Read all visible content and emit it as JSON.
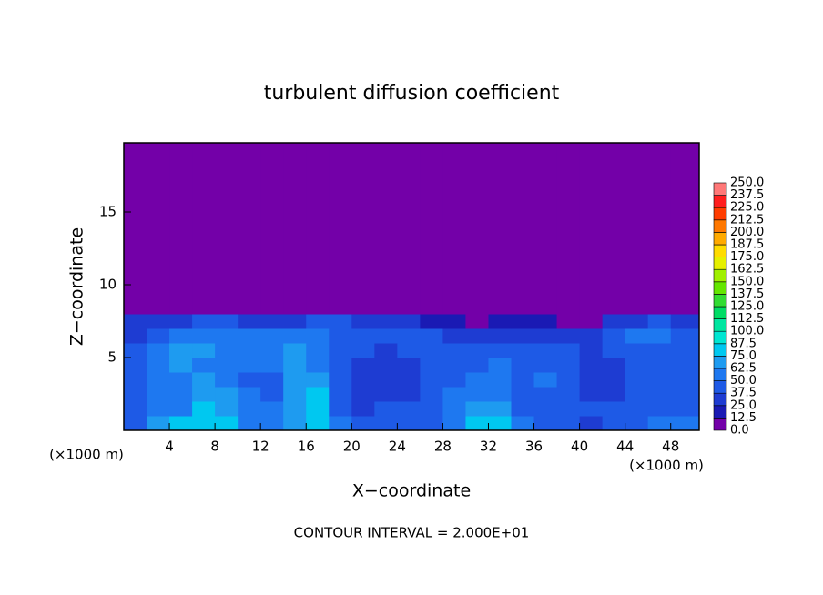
{
  "chart_data": {
    "type": "heatmap",
    "title": "turbulent diffusion coefficient",
    "x_label": "X−coordinate",
    "y_label": "Z−coordinate",
    "x_unit_left": "(×1000 m)",
    "x_unit_right": "(×1000 m)",
    "footnote": "CONTOUR INTERVAL = 2.000E+01",
    "xlim": [
      0,
      50.5
    ],
    "ylim": [
      0,
      19.75
    ],
    "xticks": [
      4,
      8,
      12,
      16,
      20,
      24,
      28,
      32,
      36,
      40,
      44,
      48
    ],
    "yticks": [
      5,
      10,
      15
    ],
    "x_edges": [
      0,
      2,
      4,
      6,
      8,
      10,
      12,
      14,
      16,
      18,
      20,
      22,
      24,
      26,
      28,
      30,
      32,
      34,
      36,
      38,
      40,
      42,
      44,
      46,
      48,
      50.5
    ],
    "y_edges": [
      0,
      1,
      2,
      3,
      4,
      5,
      6,
      7,
      8,
      19.75
    ],
    "z": [
      [
        45,
        70,
        85,
        80,
        75,
        60,
        55,
        70,
        80,
        50,
        40,
        45,
        40,
        45,
        60,
        75,
        80,
        60,
        40,
        45,
        35,
        40,
        45,
        50,
        55
      ],
      [
        40,
        60,
        60,
        75,
        70,
        55,
        50,
        70,
        80,
        40,
        35,
        40,
        40,
        45,
        60,
        70,
        65,
        45,
        40,
        45,
        40,
        40,
        45,
        45,
        45
      ],
      [
        40,
        55,
        50,
        70,
        65,
        50,
        45,
        65,
        75,
        40,
        35,
        35,
        35,
        40,
        55,
        60,
        55,
        40,
        45,
        40,
        35,
        35,
        40,
        40,
        40
      ],
      [
        40,
        55,
        60,
        65,
        60,
        45,
        45,
        65,
        70,
        45,
        35,
        35,
        35,
        40,
        45,
        50,
        55,
        40,
        50,
        45,
        35,
        35,
        40,
        40,
        40
      ],
      [
        40,
        60,
        70,
        60,
        55,
        50,
        50,
        70,
        60,
        40,
        35,
        35,
        35,
        40,
        40,
        45,
        50,
        40,
        45,
        40,
        35,
        35,
        40,
        45,
        40
      ],
      [
        40,
        55,
        70,
        65,
        55,
        55,
        55,
        65,
        55,
        45,
        40,
        35,
        40,
        45,
        40,
        40,
        45,
        40,
        40,
        40,
        35,
        40,
        45,
        45,
        40
      ],
      [
        35,
        45,
        55,
        60,
        55,
        50,
        50,
        55,
        50,
        45,
        45,
        40,
        40,
        40,
        30,
        30,
        35,
        30,
        30,
        30,
        30,
        40,
        50,
        50,
        40
      ],
      [
        25,
        30,
        35,
        40,
        40,
        30,
        25,
        35,
        40,
        40,
        35,
        30,
        25,
        20,
        15,
        10,
        15,
        20,
        15,
        10,
        10,
        25,
        35,
        40,
        30
      ],
      [
        0,
        0,
        0,
        0,
        0,
        0,
        0,
        0,
        0,
        0,
        0,
        0,
        0,
        0,
        0,
        0,
        0,
        0,
        0,
        0,
        0,
        0,
        0,
        0,
        0
      ]
    ],
    "levels": [
      {
        "value": 0,
        "label": "0.0"
      },
      {
        "value": 12.5,
        "label": "12.5"
      },
      {
        "value": 25,
        "label": "25.0"
      },
      {
        "value": 37.5,
        "label": "37.5"
      },
      {
        "value": 50,
        "label": "50.0"
      },
      {
        "value": 62.5,
        "label": "62.5"
      },
      {
        "value": 75,
        "label": "75.0"
      },
      {
        "value": 87.5,
        "label": "87.5"
      },
      {
        "value": 100,
        "label": "100.0"
      },
      {
        "value": 112.5,
        "label": "112.5"
      },
      {
        "value": 125,
        "label": "125.0"
      },
      {
        "value": 137.5,
        "label": "137.5"
      },
      {
        "value": 150,
        "label": "150.0"
      },
      {
        "value": 162.5,
        "label": "162.5"
      },
      {
        "value": 175,
        "label": "175.0"
      },
      {
        "value": 187.5,
        "label": "187.5"
      },
      {
        "value": 200,
        "label": "200.0"
      },
      {
        "value": 212.5,
        "label": "212.5"
      },
      {
        "value": 225,
        "label": "225.0"
      },
      {
        "value": 237.5,
        "label": "237.5"
      },
      {
        "value": 250,
        "label": "250.0"
      }
    ],
    "colors": [
      "#7300a8",
      "#1a1ab4",
      "#1e3cd2",
      "#1e5ae6",
      "#1e78f0",
      "#1e9bf0",
      "#00c8f0",
      "#00e6d2",
      "#00e6a0",
      "#00dc64",
      "#32dc32",
      "#64e600",
      "#a0f000",
      "#e6f000",
      "#ffdc00",
      "#ffaa00",
      "#ff7800",
      "#ff3c00",
      "#ff1e1e",
      "#ff7878"
    ]
  }
}
